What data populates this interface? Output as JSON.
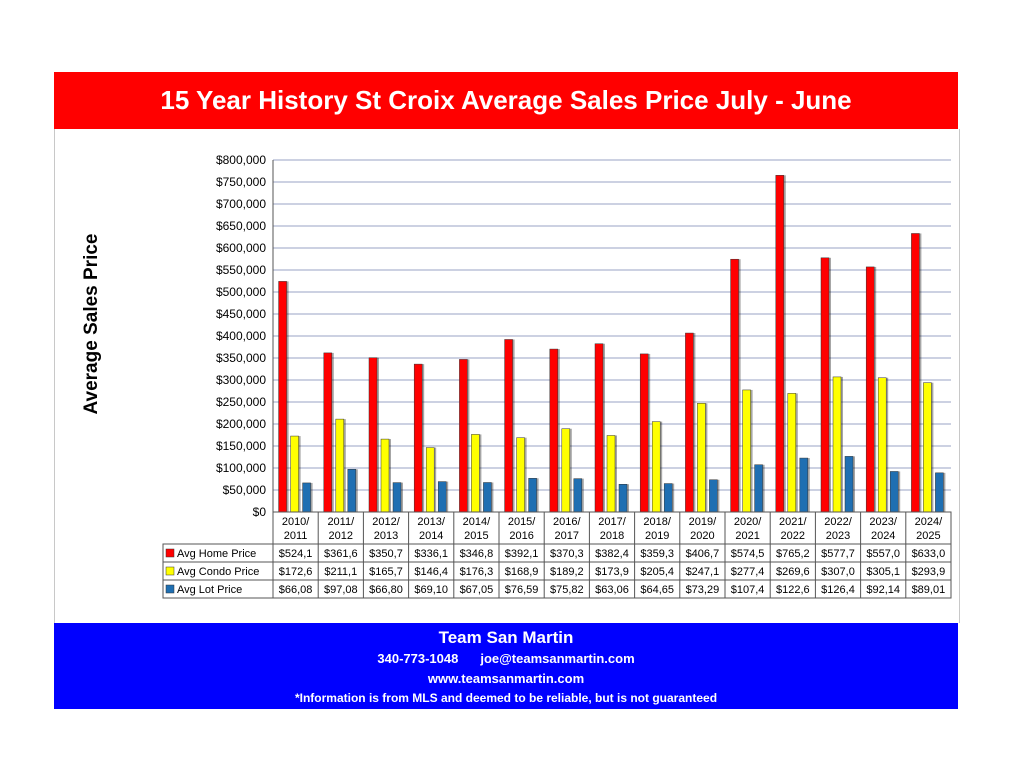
{
  "title": "15 Year History St Croix Average Sales Price July - June",
  "footer": {
    "team": "Team San Martin",
    "phone": "340-773-1048",
    "email": "joe@teamsanmartin.com",
    "website": "www.teamsanmartin.com",
    "disclaimer": "*Information is from MLS and deemed to be reliable, but is not guaranteed"
  },
  "colors": {
    "title_bg": "#ff0000",
    "footer_bg": "#0000ff",
    "home": "#ff0000",
    "condo": "#ffff00",
    "lot": "#1f6fb2"
  },
  "chart_data": {
    "type": "bar",
    "title": "15 Year History St Croix Average Sales Price July - June",
    "xlabel": "",
    "ylabel": "Average Sales Price",
    "ylim": [
      0,
      800000
    ],
    "ytick_labels": [
      "$0",
      "$50,000",
      "$100,000",
      "$150,000",
      "$200,000",
      "$250,000",
      "$300,000",
      "$350,000",
      "$400,000",
      "$450,000",
      "$500,000",
      "$550,000",
      "$600,000",
      "$650,000",
      "$700,000",
      "$750,000",
      "$800,000"
    ],
    "grid": true,
    "legend": "data-table-left",
    "categories": [
      [
        "2010/",
        "2011"
      ],
      [
        "2011/",
        "2012"
      ],
      [
        "2012/",
        "2013"
      ],
      [
        "2013/",
        "2014"
      ],
      [
        "2014/",
        "2015"
      ],
      [
        "2015/",
        "2016"
      ],
      [
        "2016/",
        "2017"
      ],
      [
        "2017/",
        "2018"
      ],
      [
        "2018/",
        "2019"
      ],
      [
        "2019/",
        "2020"
      ],
      [
        "2020/",
        "2021"
      ],
      [
        "2021/",
        "2022"
      ],
      [
        "2022/",
        "2023"
      ],
      [
        "2023/",
        "2024"
      ],
      [
        "2024/",
        "2025"
      ]
    ],
    "series": [
      {
        "name": "Avg Home Price",
        "values": [
          524100,
          361600,
          350700,
          336100,
          346800,
          392100,
          370300,
          382400,
          359300,
          406700,
          574500,
          765200,
          577700,
          557000,
          633000
        ],
        "labels": [
          "$524,1",
          "$361,6",
          "$350,7",
          "$336,1",
          "$346,8",
          "$392,1",
          "$370,3",
          "$382,4",
          "$359,3",
          "$406,7",
          "$574,5",
          "$765,2",
          "$577,7",
          "$557,0",
          "$633,0"
        ]
      },
      {
        "name": "Avg Condo Price",
        "values": [
          172600,
          211100,
          165700,
          146400,
          176300,
          168900,
          189200,
          173900,
          205400,
          247100,
          277400,
          269600,
          307000,
          305100,
          293900
        ],
        "labels": [
          "$172,6",
          "$211,1",
          "$165,7",
          "$146,4",
          "$176,3",
          "$168,9",
          "$189,2",
          "$173,9",
          "$205,4",
          "$247,1",
          "$277,4",
          "$269,6",
          "$307,0",
          "$305,1",
          "$293,9"
        ]
      },
      {
        "name": "Avg Lot Price",
        "values": [
          66080,
          97080,
          66800,
          69100,
          67050,
          76590,
          75820,
          63060,
          64650,
          73290,
          107400,
          122600,
          126400,
          92140,
          89010
        ],
        "labels": [
          "$66,08",
          "$97,08",
          "$66,80",
          "$69,10",
          "$67,05",
          "$76,59",
          "$75,82",
          "$63,06",
          "$64,65",
          "$73,29",
          "$107,4",
          "$122,6",
          "$126,4",
          "$92,14",
          "$89,01"
        ]
      }
    ]
  }
}
